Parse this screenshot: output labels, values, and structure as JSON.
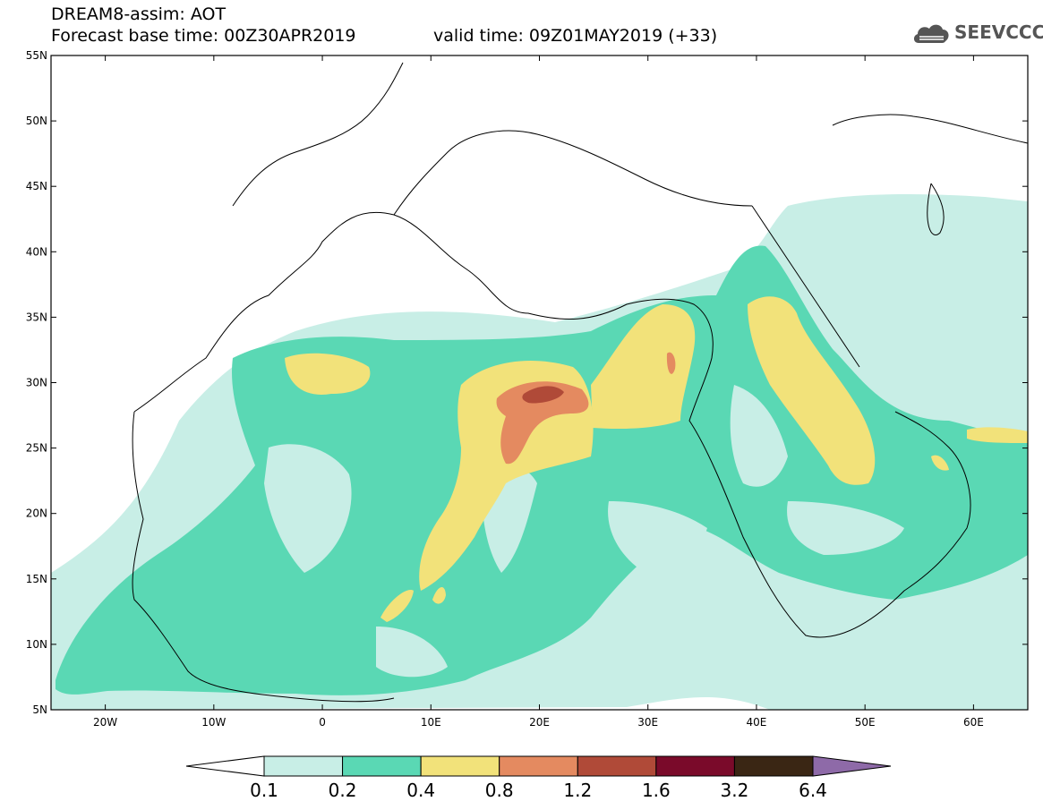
{
  "header": {
    "line1": "DREAM8-assim: AOT",
    "base_time": "Forecast base time: 00Z30APR2019",
    "valid_time": "valid time: 09Z01MAY2019 (+33)"
  },
  "logo": {
    "text": "SEEVCCC",
    "icon": "cloud-icon"
  },
  "map": {
    "lat_range": [
      "5N",
      "55N"
    ],
    "lon_range": [
      "25W",
      "65E"
    ],
    "lat_labels": [
      "55N",
      "50N",
      "45N",
      "40N",
      "35N",
      "30N",
      "25N",
      "20N",
      "15N",
      "10N",
      "5N"
    ],
    "lon_labels": [
      "20W",
      "10W",
      "0",
      "10E",
      "20E",
      "30E",
      "40E",
      "50E",
      "60E"
    ]
  },
  "colorbar": {
    "colors": [
      "#ffffff",
      "#c8eee6",
      "#5ad8b4",
      "#f2e27a",
      "#e48a60",
      "#b04a38",
      "#7a0a2a",
      "#3a2614",
      "#8e6aa8"
    ],
    "labels": [
      "0.1",
      "0.2",
      "0.4",
      "0.8",
      "1.2",
      "1.6",
      "3.2",
      "6.4"
    ]
  }
}
